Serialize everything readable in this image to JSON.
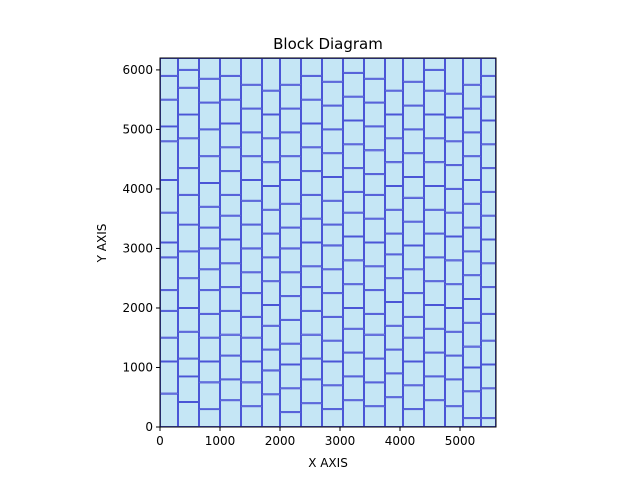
{
  "chart_data": {
    "type": "block-diagram",
    "title": "Block Diagram",
    "xlabel": "X AXIS",
    "ylabel": "Y AXIS",
    "xlim": [
      0,
      5600
    ],
    "ylim": [
      0,
      6200
    ],
    "x_ticks": [
      0,
      1000,
      2000,
      3000,
      4000,
      5000
    ],
    "y_ticks": [
      0,
      1000,
      2000,
      3000,
      4000,
      5000,
      6000
    ],
    "block_fill": "#c5e6f5",
    "block_stroke": "#4a55d6",
    "columns": [
      {
        "x0": 0,
        "x1": 300,
        "cuts": [
          0,
          560,
          1100,
          1500,
          1950,
          2300,
          2850,
          3100,
          3600,
          4150,
          4800,
          5050,
          5500,
          5900,
          6200
        ]
      },
      {
        "x0": 300,
        "x1": 650,
        "cuts": [
          0,
          420,
          850,
          1150,
          1600,
          2000,
          2500,
          2950,
          3400,
          3900,
          4350,
          4850,
          5250,
          5700,
          6000,
          6200
        ]
      },
      {
        "x0": 650,
        "x1": 1000,
        "cuts": [
          0,
          300,
          750,
          1100,
          1500,
          1900,
          2300,
          2650,
          3000,
          3350,
          3700,
          4100,
          4550,
          5000,
          5450,
          5850,
          6200
        ]
      },
      {
        "x0": 1000,
        "x1": 1350,
        "cuts": [
          0,
          450,
          800,
          1200,
          1550,
          1950,
          2350,
          2750,
          3150,
          3550,
          3900,
          4300,
          4700,
          5100,
          5500,
          5900,
          6200
        ]
      },
      {
        "x0": 1350,
        "x1": 1700,
        "cuts": [
          0,
          350,
          750,
          1100,
          1500,
          1850,
          2250,
          2600,
          3000,
          3400,
          3800,
          4150,
          4550,
          4950,
          5350,
          5750,
          6200
        ]
      },
      {
        "x0": 1700,
        "x1": 2000,
        "cuts": [
          0,
          550,
          950,
          1300,
          1700,
          2050,
          2450,
          2850,
          3250,
          3650,
          4050,
          4450,
          4850,
          5250,
          5650,
          6200
        ]
      },
      {
        "x0": 2000,
        "x1": 2350,
        "cuts": [
          0,
          250,
          650,
          1050,
          1400,
          1800,
          2200,
          2600,
          3000,
          3350,
          3750,
          4150,
          4550,
          4950,
          5350,
          5750,
          6200
        ]
      },
      {
        "x0": 2350,
        "x1": 2700,
        "cuts": [
          0,
          400,
          800,
          1150,
          1550,
          1950,
          2350,
          2700,
          3100,
          3500,
          3900,
          4300,
          4700,
          5100,
          5500,
          5900,
          6200
        ]
      },
      {
        "x0": 2700,
        "x1": 3050,
        "cuts": [
          0,
          300,
          700,
          1100,
          1450,
          1850,
          2250,
          2650,
          3050,
          3400,
          3800,
          4200,
          4600,
          5000,
          5400,
          5800,
          6200
        ]
      },
      {
        "x0": 3050,
        "x1": 3400,
        "cuts": [
          0,
          450,
          850,
          1250,
          1650,
          2000,
          2400,
          2800,
          3200,
          3600,
          3950,
          4350,
          4750,
          5150,
          5550,
          5950,
          6200
        ]
      },
      {
        "x0": 3400,
        "x1": 3750,
        "cuts": [
          0,
          350,
          750,
          1150,
          1550,
          1900,
          2300,
          2700,
          3100,
          3500,
          3900,
          4250,
          4650,
          5050,
          5450,
          5850,
          6200
        ]
      },
      {
        "x0": 3750,
        "x1": 4050,
        "cuts": [
          0,
          500,
          900,
          1300,
          1700,
          2100,
          2500,
          2900,
          3250,
          3650,
          4050,
          4450,
          4850,
          5250,
          5650,
          6200
        ]
      },
      {
        "x0": 4050,
        "x1": 4400,
        "cuts": [
          0,
          300,
          700,
          1100,
          1500,
          1850,
          2250,
          2650,
          3050,
          3450,
          3850,
          4200,
          4600,
          5000,
          5400,
          5800,
          6200
        ]
      },
      {
        "x0": 4400,
        "x1": 4750,
        "cuts": [
          0,
          450,
          850,
          1250,
          1650,
          2050,
          2450,
          2850,
          3250,
          3650,
          4050,
          4450,
          4850,
          5250,
          5650,
          6000,
          6200
        ]
      },
      {
        "x0": 4750,
        "x1": 5050,
        "cuts": [
          0,
          350,
          800,
          1200,
          1600,
          2000,
          2400,
          2800,
          3200,
          3600,
          4000,
          4400,
          4800,
          5200,
          5600,
          6200
        ]
      },
      {
        "x0": 5050,
        "x1": 5350,
        "cuts": [
          0,
          150,
          600,
          1000,
          1350,
          1750,
          2150,
          2550,
          2950,
          3350,
          3750,
          4150,
          4550,
          4950,
          5350,
          5750,
          6200
        ]
      },
      {
        "x0": 5350,
        "x1": 5600,
        "cuts": [
          0,
          150,
          650,
          1050,
          1450,
          1900,
          2350,
          2750,
          3150,
          3550,
          3950,
          4350,
          4750,
          5150,
          5550,
          5900,
          6200
        ]
      }
    ],
    "grid": false,
    "legend": false
  }
}
